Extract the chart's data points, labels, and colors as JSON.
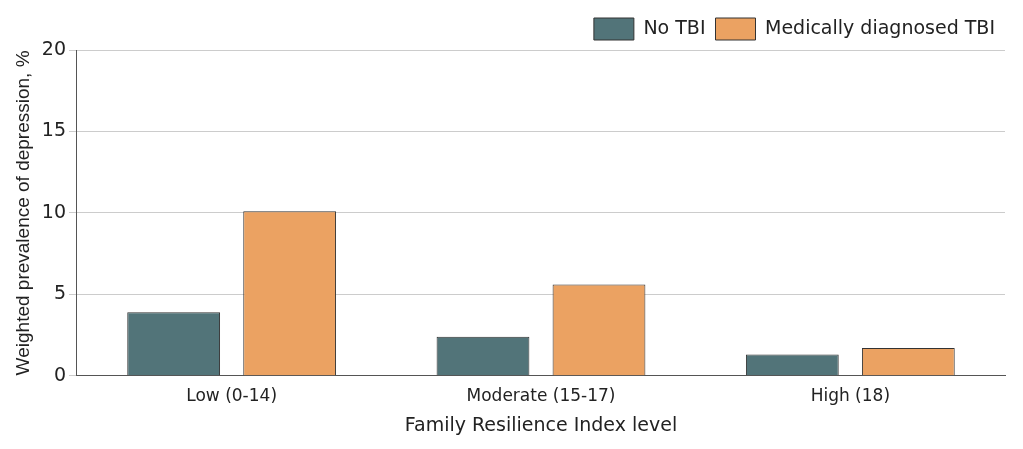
{
  "chart_data": {
    "type": "bar",
    "xlabel": "Family Resilience Index level",
    "ylabel": "Weighted prevalence of depression, %",
    "categories": [
      "Low (0-14)",
      "Moderate (15-17)",
      "High (18)"
    ],
    "series": [
      {
        "name": "No TBI",
        "color": "#527479",
        "values": [
          3.9,
          2.4,
          1.3
        ]
      },
      {
        "name": "Medically diagnosed TBI",
        "color": "#eba262",
        "values": [
          10.1,
          5.6,
          1.7
        ]
      }
    ],
    "ylim": [
      0,
      20
    ],
    "yticks": [
      0,
      5,
      10,
      15,
      20
    ],
    "grid": "y",
    "legend": "top right"
  }
}
